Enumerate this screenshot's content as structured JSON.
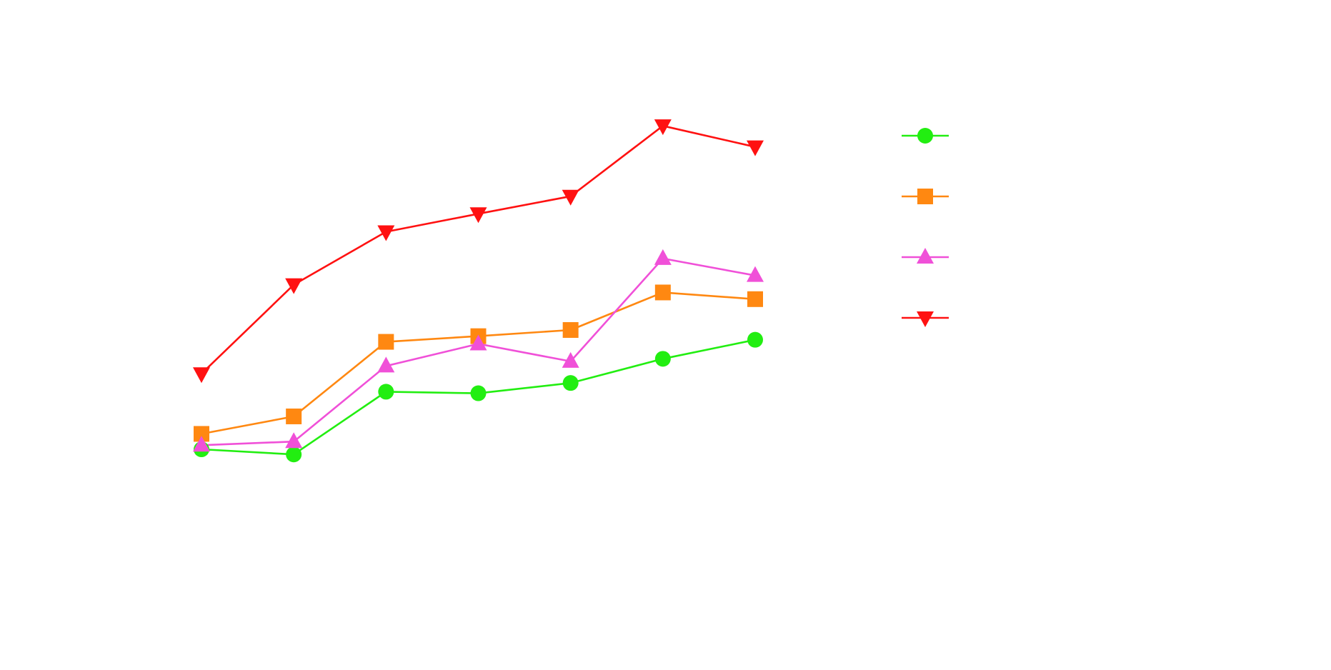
{
  "chart_data": {
    "type": "line",
    "title": "",
    "xlabel": "",
    "ylabel": "",
    "x": [
      1,
      2,
      3,
      4,
      5,
      6,
      7
    ],
    "xlim": [
      1,
      7
    ],
    "ylim": [
      0,
      100
    ],
    "grid": false,
    "legend_position": "right",
    "series": [
      {
        "color": "#22ee11",
        "marker": "circle",
        "values": [
          29.3,
          28.3,
          40.5,
          40.2,
          42.2,
          46.9,
          50.6
        ]
      },
      {
        "color": "#ff8811",
        "marker": "square",
        "values": [
          32.3,
          35.7,
          50.2,
          51.3,
          52.5,
          59.8,
          58.5
        ]
      },
      {
        "color": "#f050d8",
        "marker": "triangle-up",
        "values": [
          30.1,
          30.8,
          45.5,
          49.8,
          46.4,
          66.4,
          63.1
        ]
      },
      {
        "color": "#ff1111",
        "marker": "triangle-down",
        "values": [
          44.0,
          61.3,
          71.6,
          75.1,
          78.5,
          92.2,
          88.1
        ]
      }
    ]
  }
}
